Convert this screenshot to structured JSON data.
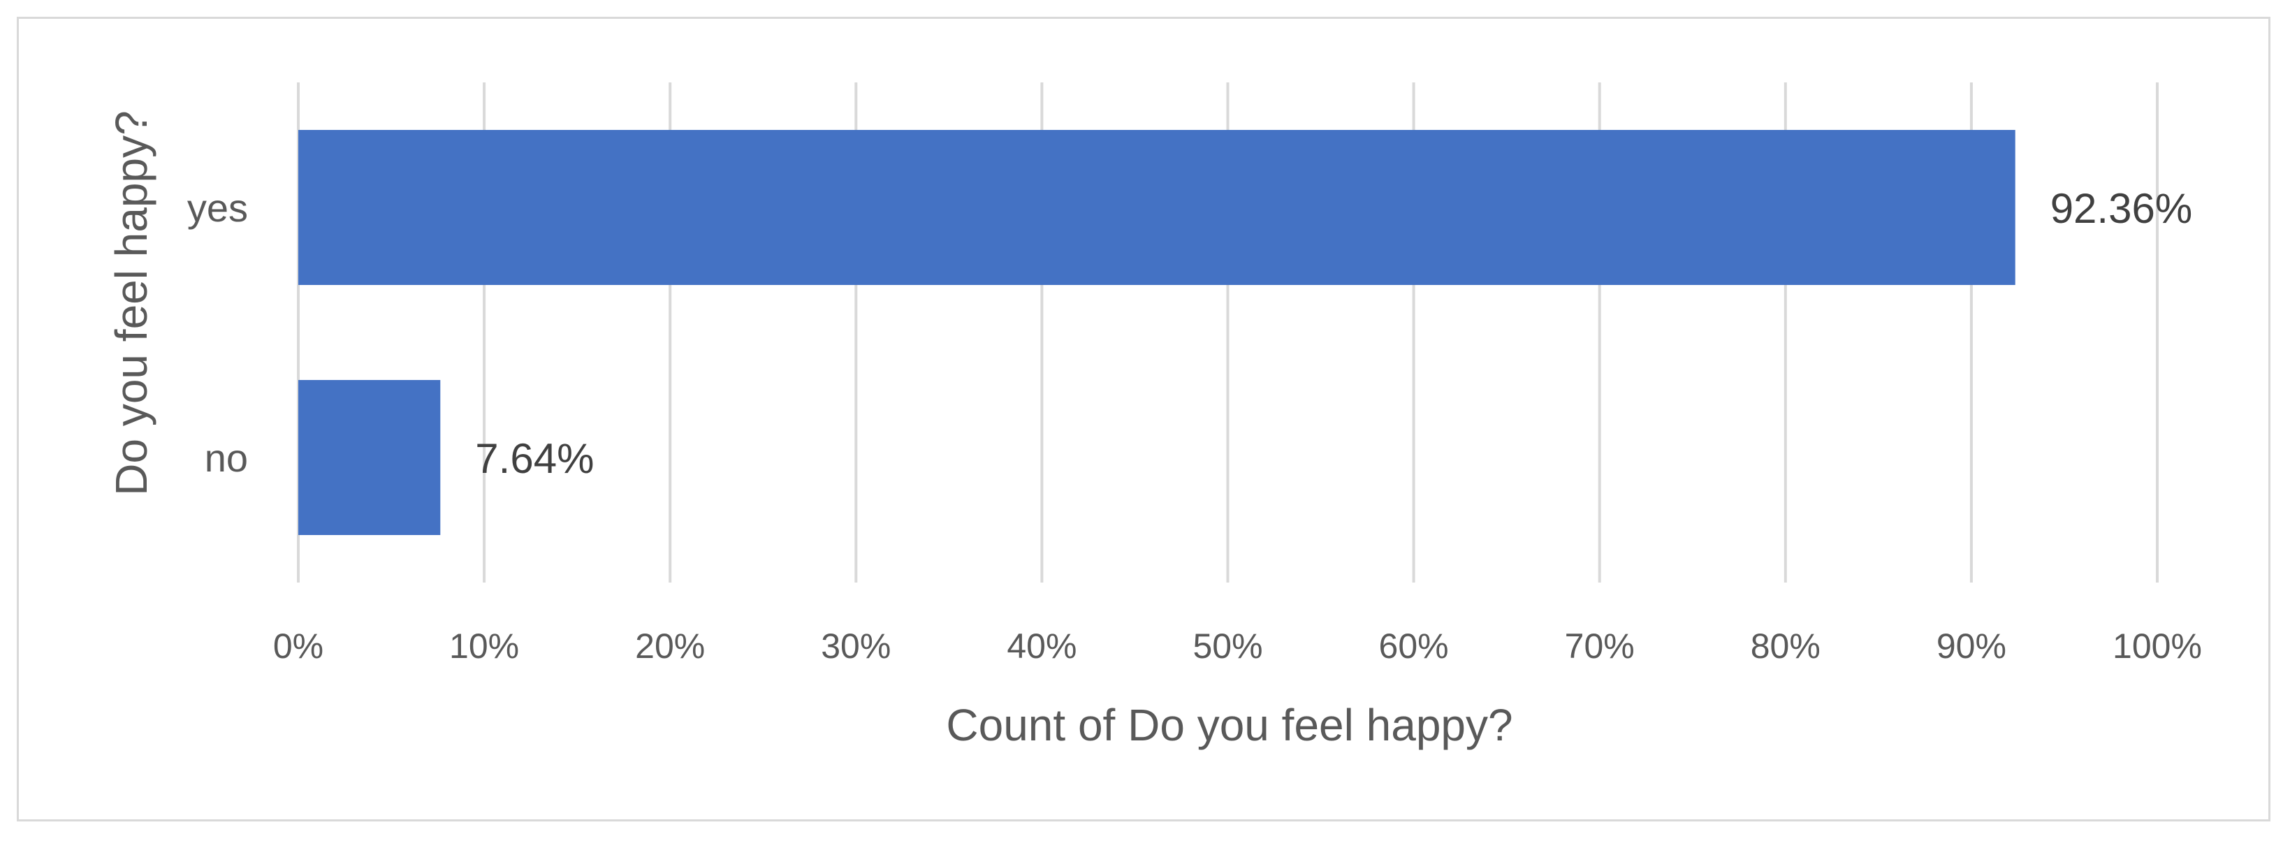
{
  "chart_data": {
    "type": "bar",
    "orientation": "horizontal",
    "categories": [
      "yes",
      "no"
    ],
    "series": [
      {
        "values": [
          92.36,
          7.64
        ],
        "color": "#4472C4",
        "data_labels": [
          "92.36%",
          "7.64%"
        ]
      }
    ],
    "xlabel": "Count of Do you feel happy?",
    "ylabel": "Do you feel happy?",
    "xlim": [
      0,
      100
    ],
    "x_ticks": [
      0,
      10,
      20,
      30,
      40,
      50,
      60,
      70,
      80,
      90,
      100
    ],
    "x_tick_labels": [
      "0%",
      "10%",
      "20%",
      "30%",
      "40%",
      "50%",
      "60%",
      "70%",
      "80%",
      "90%",
      "100%"
    ],
    "grid": true,
    "gridline_color": "#d9d9d9",
    "legend": "none"
  }
}
